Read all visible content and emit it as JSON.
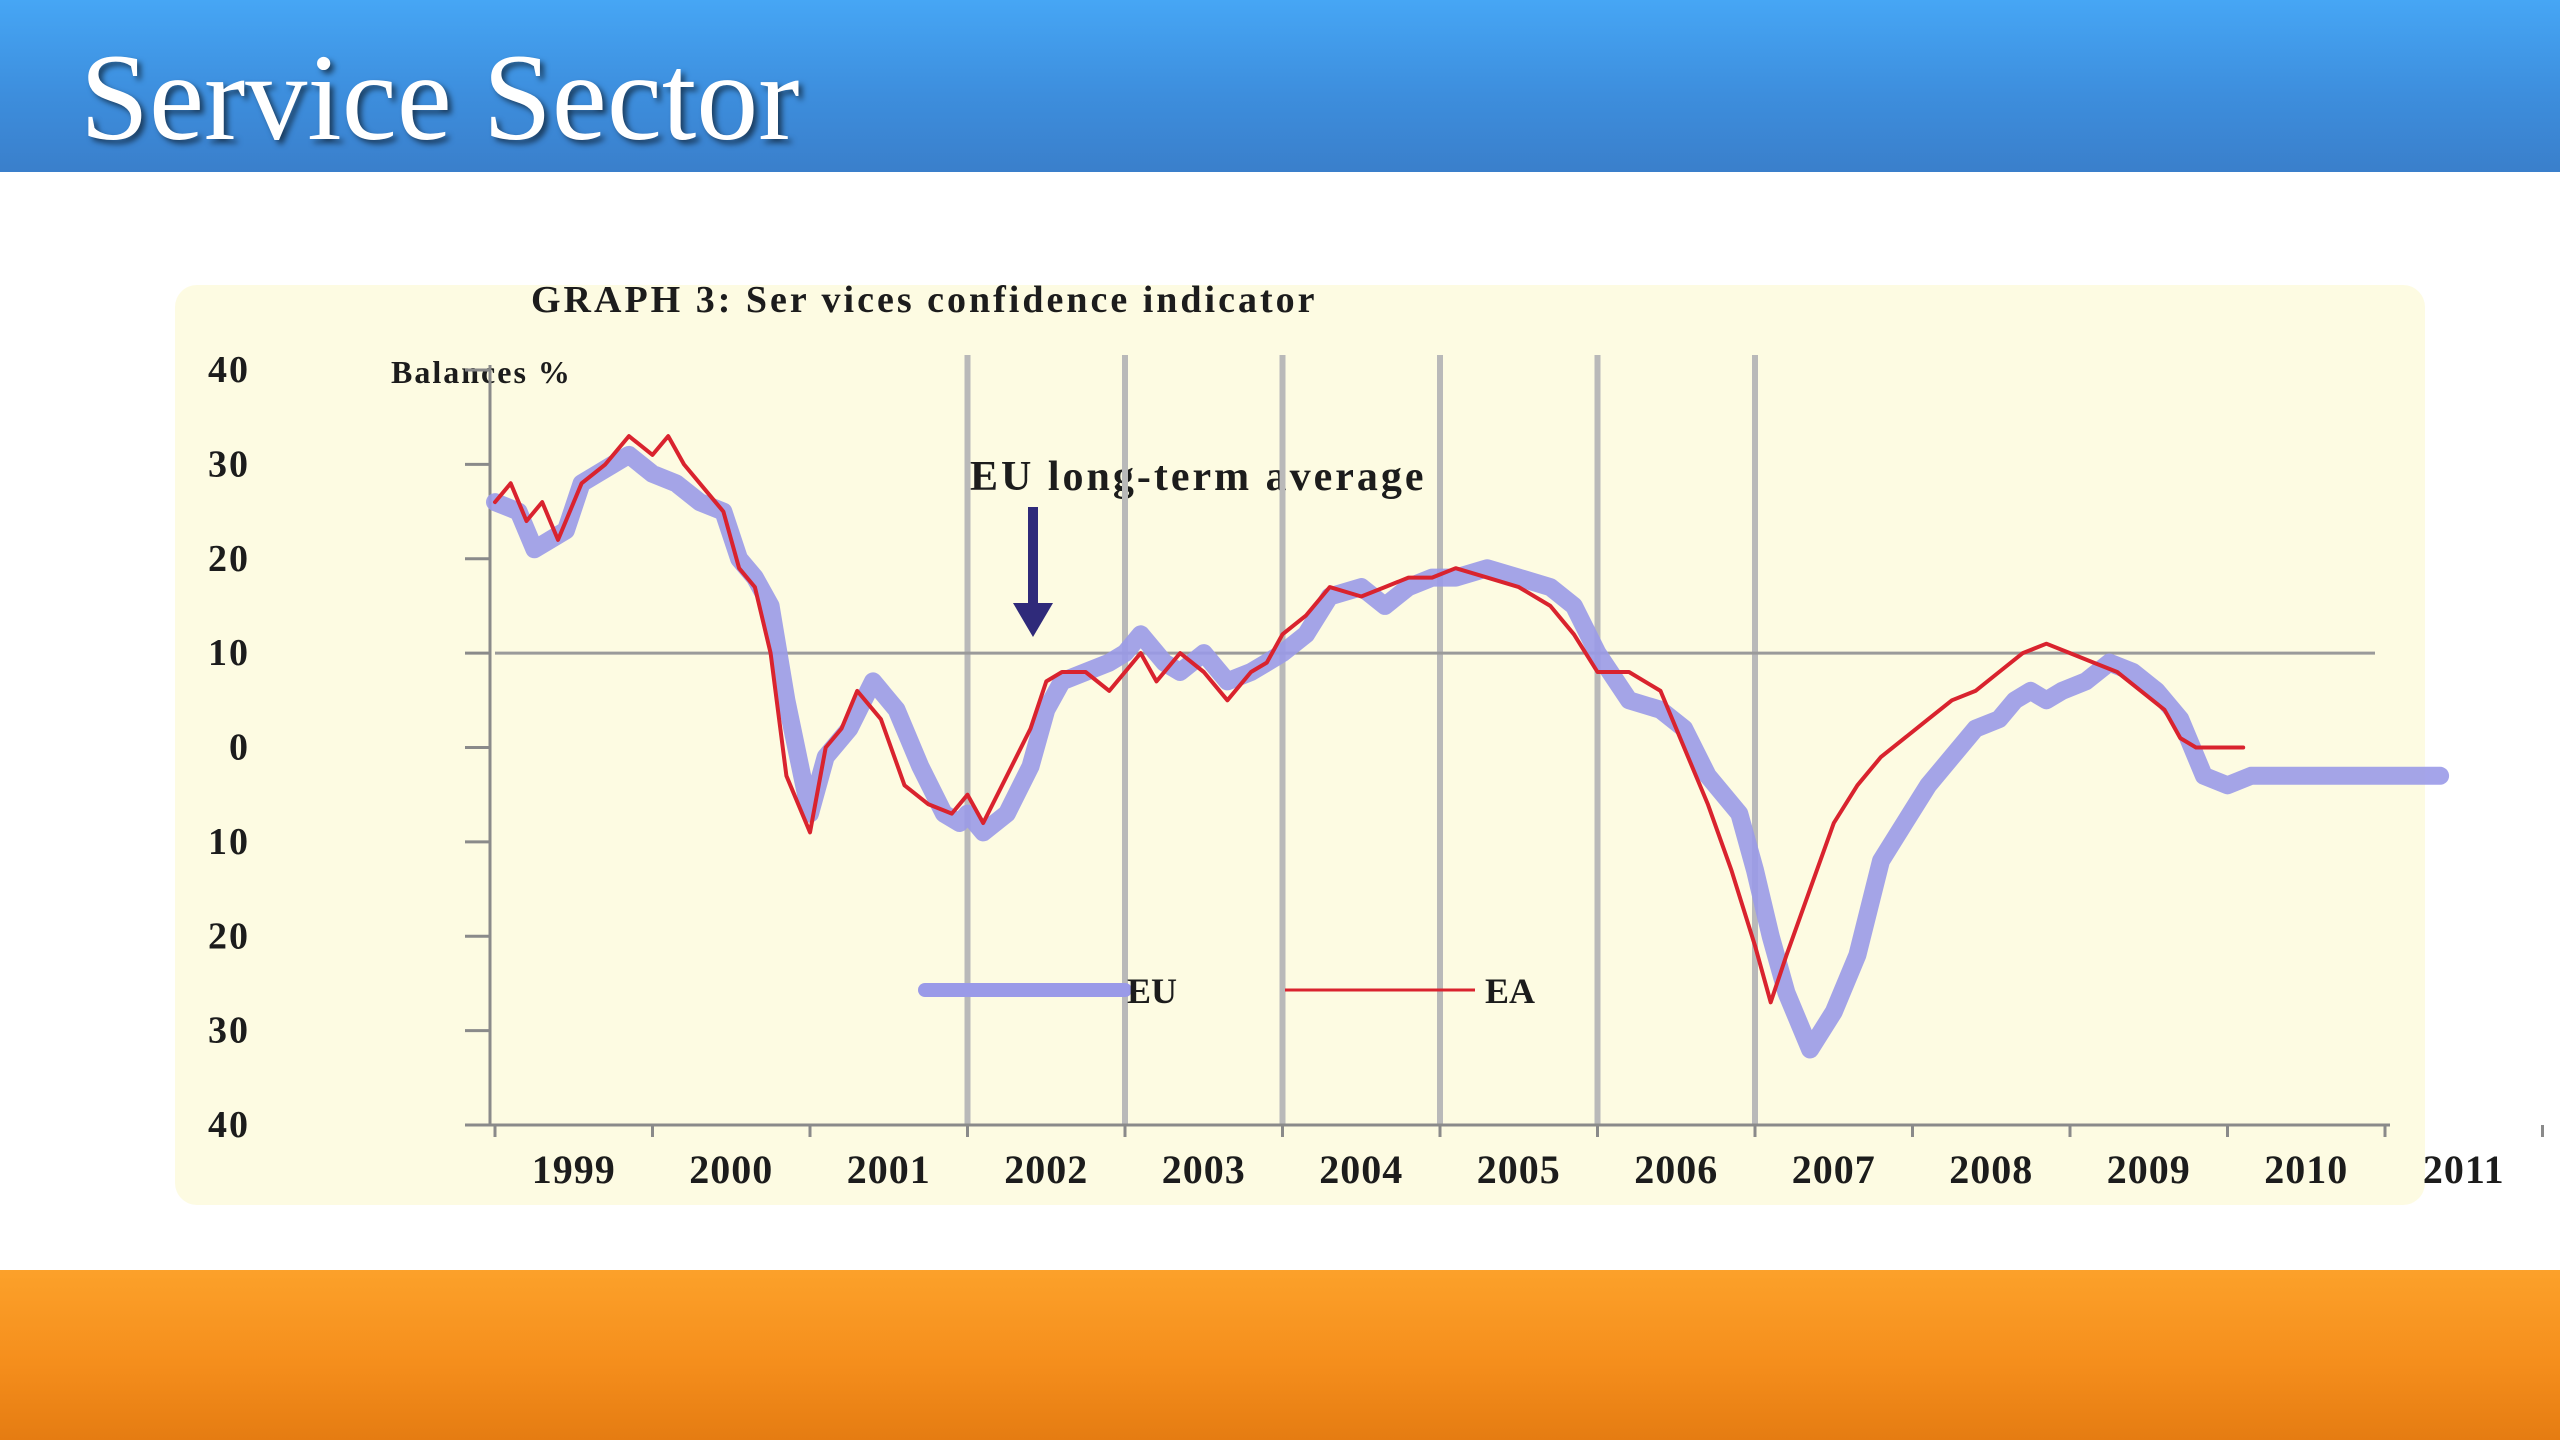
{
  "slide": {
    "title": "Service Sector"
  },
  "colors": {
    "header": "#3f8fe0",
    "footer": "#f7941d",
    "chart_background": "#fdfbe2",
    "eu_series": "#9a9ae8",
    "ea_series": "#d9232e",
    "arrow": "#2f2a7a"
  },
  "chart_data": {
    "type": "line",
    "title": "GRAPH 3: Ser vices confidence indicator",
    "ylabel": "Balances %",
    "ylim": [
      -40,
      40
    ],
    "y_ticks": [
      40,
      30,
      20,
      10,
      0,
      -10,
      -20,
      -30,
      -40
    ],
    "y_tick_labels": [
      "40",
      "30",
      "20",
      "10",
      "0",
      "10",
      "20",
      "30",
      "40"
    ],
    "xlim": [
      1999,
      2012
    ],
    "x_tick_labels": [
      "1999",
      "2000",
      "2001",
      "2002",
      "2003",
      "2004",
      "2005",
      "2006",
      "2007",
      "2008",
      "2009",
      "2010",
      "2011"
    ],
    "vertical_gridlines": [
      2002,
      2003,
      2004,
      2005,
      2006,
      2007
    ],
    "reference_line": {
      "value": 10,
      "label": "EU long-term average"
    },
    "legend": {
      "placement": "bottom-center",
      "entries": [
        "EU",
        "EA"
      ]
    },
    "series": [
      {
        "name": "EU",
        "x": [
          1999.0,
          1999.15,
          1999.25,
          1999.35,
          1999.45,
          1999.55,
          1999.65,
          1999.75,
          1999.85,
          2000.0,
          2000.15,
          2000.3,
          2000.45,
          2000.55,
          2000.65,
          2000.75,
          2000.85,
          2001.0,
          2001.1,
          2001.25,
          2001.4,
          2001.55,
          2001.7,
          2001.85,
          2001.95,
          2002.0,
          2002.1,
          2002.25,
          2002.4,
          2002.5,
          2002.6,
          2002.75,
          2002.9,
          2003.0,
          2003.1,
          2003.25,
          2003.35,
          2003.5,
          2003.65,
          2003.8,
          2003.9,
          2004.0,
          2004.15,
          2004.3,
          2004.5,
          2004.65,
          2004.8,
          2004.95,
          2005.1,
          2005.3,
          2005.5,
          2005.7,
          2005.85,
          2006.0,
          2006.2,
          2006.4,
          2006.55,
          2006.7,
          2006.9,
          2007.0,
          2007.1,
          2007.2,
          2007.35,
          2007.5,
          2007.65,
          2007.8,
          2007.95,
          2008.1,
          2008.25,
          2008.4,
          2008.55,
          2008.65,
          2008.75,
          2008.85,
          2008.95,
          2009.1,
          2009.25,
          2009.4,
          2009.55,
          2009.7,
          2009.85,
          2010.0,
          2010.15,
          2010.3,
          2010.45,
          2010.55,
          2010.65,
          2010.75,
          2010.85,
          2010.95,
          2011.05,
          2011.15,
          2011.25,
          2011.35
        ],
        "values": [
          26,
          25,
          21,
          22,
          23,
          28,
          29,
          30,
          31,
          29,
          28,
          26,
          25,
          20,
          18,
          15,
          5,
          -7,
          -1,
          2,
          7,
          4,
          -2,
          -7,
          -8,
          -7,
          -9,
          -7,
          -2,
          4,
          7,
          8,
          9,
          10,
          12,
          9,
          8,
          10,
          7,
          8,
          9,
          10,
          12,
          16,
          17,
          15,
          17,
          18,
          18,
          19,
          18,
          17,
          15,
          10,
          5,
          4,
          2,
          -3,
          -7,
          -13,
          -20,
          -26,
          -32,
          -28,
          -22,
          -12,
          -8,
          -4,
          -1,
          2,
          3,
          5,
          6,
          5,
          6,
          7,
          9,
          8,
          6,
          3,
          -3,
          -4,
          -3,
          -3,
          -3,
          -3,
          -3,
          -3,
          -3,
          -3,
          -3,
          -3,
          -3,
          -3
        ]
      },
      {
        "name": "EA",
        "x": [
          1999.0,
          1999.1,
          1999.2,
          1999.3,
          1999.4,
          1999.55,
          1999.7,
          1999.85,
          2000.0,
          2000.1,
          2000.2,
          2000.35,
          2000.45,
          2000.55,
          2000.65,
          2000.75,
          2000.85,
          2001.0,
          2001.1,
          2001.2,
          2001.3,
          2001.45,
          2001.6,
          2001.75,
          2001.9,
          2002.0,
          2002.1,
          2002.25,
          2002.4,
          2002.5,
          2002.6,
          2002.75,
          2002.9,
          2003.0,
          2003.1,
          2003.2,
          2003.35,
          2003.5,
          2003.65,
          2003.8,
          2003.9,
          2004.0,
          2004.15,
          2004.3,
          2004.5,
          2004.65,
          2004.8,
          2004.95,
          2005.1,
          2005.3,
          2005.5,
          2005.7,
          2005.85,
          2006.0,
          2006.2,
          2006.4,
          2006.55,
          2006.7,
          2006.85,
          2007.0,
          2007.1,
          2007.2,
          2007.35,
          2007.5,
          2007.65,
          2007.8,
          2007.95,
          2008.1,
          2008.25,
          2008.4,
          2008.55,
          2008.7,
          2008.85,
          2009.0,
          2009.15,
          2009.3,
          2009.45,
          2009.6,
          2009.7,
          2009.8,
          2009.9,
          2010.0,
          2010.05,
          2010.1
        ],
        "values": [
          26,
          28,
          24,
          26,
          22,
          28,
          30,
          33,
          31,
          33,
          30,
          27,
          25,
          19,
          17,
          10,
          -3,
          -9,
          0,
          2,
          6,
          3,
          -4,
          -6,
          -7,
          -5,
          -8,
          -3,
          2,
          7,
          8,
          8,
          6,
          8,
          10,
          7,
          10,
          8,
          5,
          8,
          9,
          12,
          14,
          17,
          16,
          17,
          18,
          18,
          19,
          18,
          17,
          15,
          12,
          8,
          8,
          6,
          0,
          -6,
          -13,
          -21,
          -27,
          -22,
          -15,
          -8,
          -4,
          -1,
          1,
          3,
          5,
          6,
          8,
          10,
          11,
          10,
          9,
          8,
          6,
          4,
          1,
          0,
          0,
          0,
          0,
          0
        ]
      }
    ]
  }
}
